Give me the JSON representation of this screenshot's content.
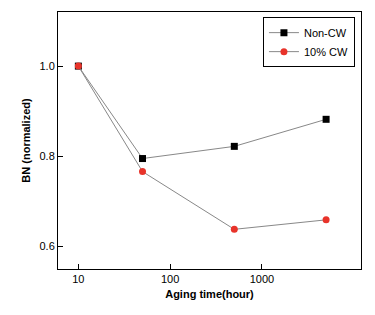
{
  "chart_data": {
    "type": "line",
    "x_label": "Aging time(hour)",
    "y_label": "BN (normalized)",
    "x": [
      10,
      50,
      500,
      5000
    ],
    "series": [
      {
        "name": "Non-CW",
        "color": "#000000",
        "marker": "square",
        "values": [
          1.0,
          0.795,
          0.822,
          0.882
        ]
      },
      {
        "name": "10% CW",
        "color": "#e8332a",
        "marker": "circle",
        "values": [
          1.0,
          0.766,
          0.638,
          0.659
        ]
      }
    ],
    "log": "x",
    "xlim": [
      6,
      12000
    ],
    "xticks": [
      10,
      100,
      1000
    ],
    "ylim": [
      0.55,
      1.12
    ],
    "yticks": [
      0.6,
      0.8,
      {
        "value": 1.0,
        "label": "1.0"
      }
    ],
    "grid": false,
    "legend": "upper right"
  }
}
